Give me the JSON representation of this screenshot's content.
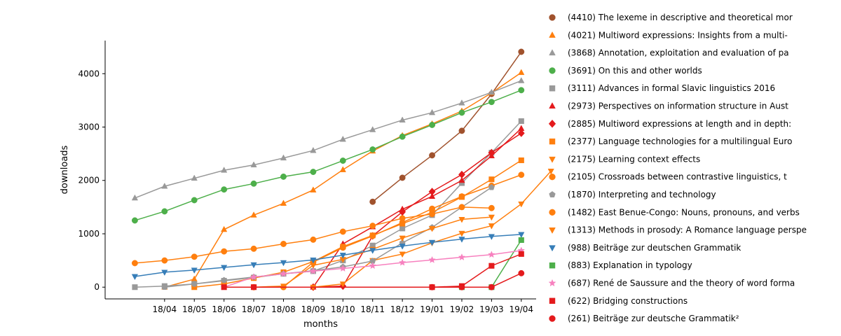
{
  "chart_data": {
    "type": "line",
    "xlabel": "months",
    "ylabel": "downloads",
    "ylim": [
      -220,
      4620
    ],
    "xlim": [
      -1,
      13.5
    ],
    "x_tick_labels": [
      "18/04",
      "18/05",
      "18/06",
      "18/07",
      "18/08",
      "18/09",
      "18/10",
      "18/11",
      "18/12",
      "19/01",
      "19/02",
      "19/03",
      "19/04"
    ],
    "y_ticks": [
      0,
      1000,
      2000,
      3000,
      4000
    ],
    "y_tick_labels": [
      "0",
      "1000",
      "2000",
      "3000",
      "4000"
    ],
    "legend_position": "outside-right",
    "grid": false,
    "series": [
      {
        "name": "(4410) The lexeme in descriptive and theoretical mor",
        "color": "#a0522d",
        "marker": "circle",
        "points": [
          [
            8,
            1600
          ],
          [
            9,
            2050
          ],
          [
            10,
            2470
          ],
          [
            11,
            2930
          ],
          [
            12,
            3620
          ],
          [
            13,
            4410
          ]
        ]
      },
      {
        "name": "(4021) Multiword expressions: Insights from a multi-",
        "color": "#ff7f0e",
        "marker": "triangle-up",
        "points": [
          [
            1,
            0
          ],
          [
            2,
            150
          ],
          [
            3,
            1080
          ],
          [
            4,
            1350
          ],
          [
            5,
            1570
          ],
          [
            6,
            1820
          ],
          [
            7,
            2200
          ],
          [
            8,
            2550
          ],
          [
            9,
            2840
          ],
          [
            10,
            3060
          ],
          [
            11,
            3300
          ],
          [
            12,
            3640
          ],
          [
            13,
            4021
          ]
        ]
      },
      {
        "name": "(3868) Annotation, exploitation and evaluation of pa",
        "color": "#999999",
        "marker": "triangle-up",
        "points": [
          [
            0,
            1670
          ],
          [
            1,
            1890
          ],
          [
            2,
            2040
          ],
          [
            3,
            2190
          ],
          [
            4,
            2290
          ],
          [
            5,
            2420
          ],
          [
            6,
            2560
          ],
          [
            7,
            2770
          ],
          [
            8,
            2950
          ],
          [
            9,
            3130
          ],
          [
            10,
            3270
          ],
          [
            11,
            3450
          ],
          [
            12,
            3650
          ],
          [
            13,
            3868
          ]
        ]
      },
      {
        "name": "(3691) On this and other worlds",
        "color": "#4daf4a",
        "marker": "circle",
        "points": [
          [
            0,
            1250
          ],
          [
            1,
            1420
          ],
          [
            2,
            1630
          ],
          [
            3,
            1830
          ],
          [
            4,
            1940
          ],
          [
            5,
            2070
          ],
          [
            6,
            2160
          ],
          [
            7,
            2370
          ],
          [
            8,
            2580
          ],
          [
            9,
            2820
          ],
          [
            10,
            3040
          ],
          [
            11,
            3270
          ],
          [
            12,
            3470
          ],
          [
            13,
            3691
          ]
        ]
      },
      {
        "name": "(3111) Advances in formal Slavic linguistics 2016",
        "color": "#999999",
        "marker": "square",
        "points": [
          [
            0,
            0
          ],
          [
            1,
            20
          ],
          [
            2,
            60
          ],
          [
            3,
            120
          ],
          [
            4,
            180
          ],
          [
            5,
            250
          ],
          [
            6,
            300
          ],
          [
            7,
            500
          ],
          [
            8,
            780
          ],
          [
            9,
            1100
          ],
          [
            10,
            1350
          ],
          [
            11,
            1950
          ],
          [
            12,
            2520
          ],
          [
            13,
            3111
          ]
        ]
      },
      {
        "name": "(2973) Perspectives on information structure in Aust",
        "color": "#e41a1c",
        "marker": "triangle-up",
        "points": [
          [
            6,
            0
          ],
          [
            7,
            810
          ],
          [
            8,
            1130
          ],
          [
            9,
            1460
          ],
          [
            10,
            1700
          ],
          [
            11,
            2000
          ],
          [
            12,
            2460
          ],
          [
            13,
            2973
          ]
        ]
      },
      {
        "name": "(2885) Multiword expressions at length and in depth:",
        "color": "#e41a1c",
        "marker": "diamond",
        "points": [
          [
            6,
            0
          ],
          [
            7,
            20
          ],
          [
            8,
            960
          ],
          [
            9,
            1410
          ],
          [
            10,
            1790
          ],
          [
            11,
            2110
          ],
          [
            12,
            2520
          ],
          [
            13,
            2885
          ]
        ]
      },
      {
        "name": "(2377) Language technologies for a multilingual Euro",
        "color": "#ff7f0e",
        "marker": "square",
        "points": [
          [
            2,
            0
          ],
          [
            3,
            60
          ],
          [
            4,
            170
          ],
          [
            5,
            280
          ],
          [
            6,
            480
          ],
          [
            7,
            760
          ],
          [
            8,
            970
          ],
          [
            9,
            1190
          ],
          [
            10,
            1400
          ],
          [
            11,
            1690
          ],
          [
            12,
            2020
          ],
          [
            13,
            2377
          ]
        ]
      },
      {
        "name": "(2175) Learning context effects",
        "color": "#ff7f0e",
        "marker": "triangle-down",
        "points": [
          [
            6,
            0
          ],
          [
            7,
            60
          ],
          [
            8,
            500
          ],
          [
            9,
            620
          ],
          [
            10,
            830
          ],
          [
            11,
            1010
          ],
          [
            12,
            1150
          ],
          [
            13,
            1560
          ],
          [
            14,
            2175
          ]
        ]
      },
      {
        "name": "(2105) Crossroads between contrastive linguistics, t",
        "color": "#ff7f0e",
        "marker": "circle",
        "points": [
          [
            4,
            0
          ],
          [
            5,
            0
          ],
          [
            6,
            470
          ],
          [
            7,
            740
          ],
          [
            8,
            960
          ],
          [
            9,
            1210
          ],
          [
            10,
            1470
          ],
          [
            11,
            1700
          ],
          [
            12,
            1900
          ],
          [
            13,
            2105
          ]
        ]
      },
      {
        "name": "(1870) Interpreting and technology",
        "color": "#999999",
        "marker": "pentagon",
        "points": [
          [
            1,
            0
          ],
          [
            2,
            60
          ],
          [
            3,
            130
          ],
          [
            4,
            190
          ],
          [
            5,
            250
          ],
          [
            6,
            310
          ],
          [
            7,
            380
          ],
          [
            8,
            490
          ],
          [
            9,
            830
          ],
          [
            10,
            1120
          ],
          [
            11,
            1500
          ],
          [
            12,
            1870
          ]
        ]
      },
      {
        "name": "(1482) East Benue-Congo: Nouns, pronouns, and verbs",
        "color": "#ff7f0e",
        "marker": "circle",
        "points": [
          [
            0,
            450
          ],
          [
            1,
            500
          ],
          [
            2,
            570
          ],
          [
            3,
            670
          ],
          [
            4,
            720
          ],
          [
            5,
            810
          ],
          [
            6,
            890
          ],
          [
            7,
            1040
          ],
          [
            8,
            1150
          ],
          [
            9,
            1290
          ],
          [
            10,
            1370
          ],
          [
            11,
            1500
          ],
          [
            12,
            1482
          ]
        ]
      },
      {
        "name": "(1313) Methods in prosody: A Romance language perspe",
        "color": "#ff7f0e",
        "marker": "triangle-down",
        "points": [
          [
            4,
            0
          ],
          [
            5,
            20
          ],
          [
            6,
            410
          ],
          [
            7,
            520
          ],
          [
            8,
            710
          ],
          [
            9,
            920
          ],
          [
            10,
            1100
          ],
          [
            11,
            1270
          ],
          [
            12,
            1313
          ]
        ]
      },
      {
        "name": "(988) Beiträge zur deutschen Grammatik",
        "color": "#377eb8",
        "marker": "triangle-down",
        "points": [
          [
            0,
            200
          ],
          [
            1,
            280
          ],
          [
            2,
            320
          ],
          [
            3,
            370
          ],
          [
            4,
            420
          ],
          [
            5,
            460
          ],
          [
            6,
            510
          ],
          [
            7,
            600
          ],
          [
            8,
            690
          ],
          [
            9,
            770
          ],
          [
            10,
            840
          ],
          [
            11,
            900
          ],
          [
            12,
            950
          ],
          [
            13,
            988
          ]
        ]
      },
      {
        "name": "(883) Explanation in typology",
        "color": "#4daf4a",
        "marker": "square",
        "points": [
          [
            11,
            0
          ],
          [
            12,
            0
          ],
          [
            13,
            883
          ]
        ]
      },
      {
        "name": "(687) René de Saussure and the theory of word forma",
        "color": "#f781bf",
        "marker": "star",
        "points": [
          [
            3,
            0
          ],
          [
            4,
            190
          ],
          [
            5,
            250
          ],
          [
            6,
            300
          ],
          [
            7,
            350
          ],
          [
            8,
            400
          ],
          [
            9,
            460
          ],
          [
            10,
            510
          ],
          [
            11,
            560
          ],
          [
            12,
            610
          ],
          [
            13,
            687
          ]
        ]
      },
      {
        "name": "(622) Bridging constructions",
        "color": "#e41a1c",
        "marker": "square",
        "points": [
          [
            3,
            0
          ],
          [
            4,
            0
          ],
          [
            10,
            0
          ],
          [
            11,
            20
          ],
          [
            12,
            400
          ],
          [
            13,
            622
          ]
        ]
      },
      {
        "name": "(261) Beiträge zur deutsche Grammatik²",
        "color": "#e41a1c",
        "marker": "circle",
        "points": [
          [
            10,
            0
          ],
          [
            11,
            0
          ],
          [
            12,
            0
          ],
          [
            13,
            261
          ]
        ]
      }
    ]
  }
}
